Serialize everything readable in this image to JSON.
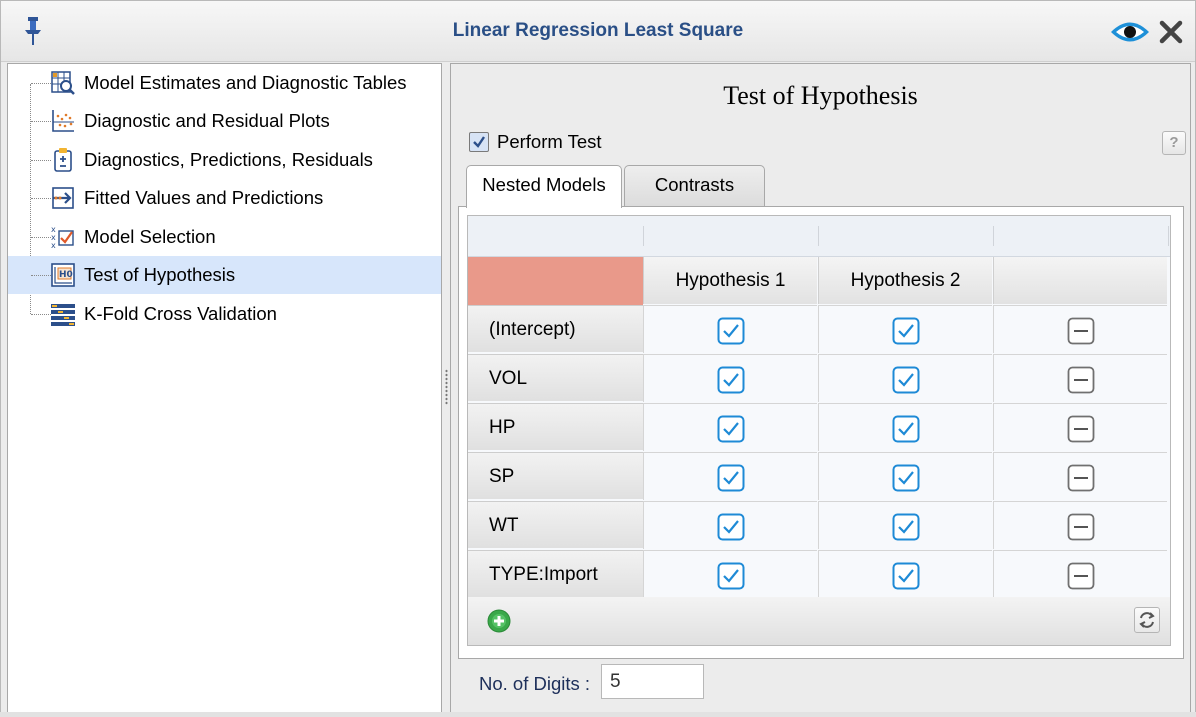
{
  "window": {
    "title": "Linear Regression Least Square",
    "icons": [
      "pin-icon",
      "eye-icon",
      "close-icon"
    ]
  },
  "tree": {
    "items": [
      {
        "label": "Model Estimates and Diagnostic Tables",
        "icon": "table-search-icon",
        "selected": false
      },
      {
        "label": "Diagnostic and Residual Plots",
        "icon": "scatter-plot-icon",
        "selected": false
      },
      {
        "label": "Diagnostics, Predictions, Residuals",
        "icon": "clipboard-plus-minus-icon",
        "selected": false
      },
      {
        "label": "Fitted Values and Predictions",
        "icon": "arrow-box-icon",
        "selected": false
      },
      {
        "label": "Model Selection",
        "icon": "xxx-check-icon",
        "selected": false
      },
      {
        "label": "Test of Hypothesis",
        "icon": "h0-icon",
        "selected": true
      },
      {
        "label": "K-Fold Cross Validation",
        "icon": "fold-grid-icon",
        "selected": false
      }
    ]
  },
  "panel": {
    "title": "Test of Hypothesis",
    "perform_test": {
      "label": "Perform Test",
      "checked": true
    },
    "help": "?",
    "tabs": [
      {
        "label": "Nested Models",
        "active": true
      },
      {
        "label": "Contrasts",
        "active": false
      }
    ],
    "table": {
      "columns": [
        "Hypothesis 1",
        "Hypothesis 2",
        ""
      ],
      "rows": [
        {
          "label": "(Intercept)",
          "values": [
            "checked",
            "checked",
            "indeterminate"
          ]
        },
        {
          "label": "VOL",
          "values": [
            "checked",
            "checked",
            "indeterminate"
          ]
        },
        {
          "label": "HP",
          "values": [
            "checked",
            "checked",
            "indeterminate"
          ]
        },
        {
          "label": "SP",
          "values": [
            "checked",
            "checked",
            "indeterminate"
          ]
        },
        {
          "label": "WT",
          "values": [
            "checked",
            "checked",
            "indeterminate"
          ]
        },
        {
          "label": "TYPE:Import",
          "values": [
            "checked",
            "checked",
            "indeterminate"
          ]
        }
      ]
    },
    "digits": {
      "label": "No. of Digits :",
      "value": "5"
    }
  },
  "colors": {
    "title_text": "#2a4f86",
    "selected_row": "#d7e6fb",
    "corner_header": "#e9998a",
    "checkbox_blue": "#1e8ad6"
  }
}
